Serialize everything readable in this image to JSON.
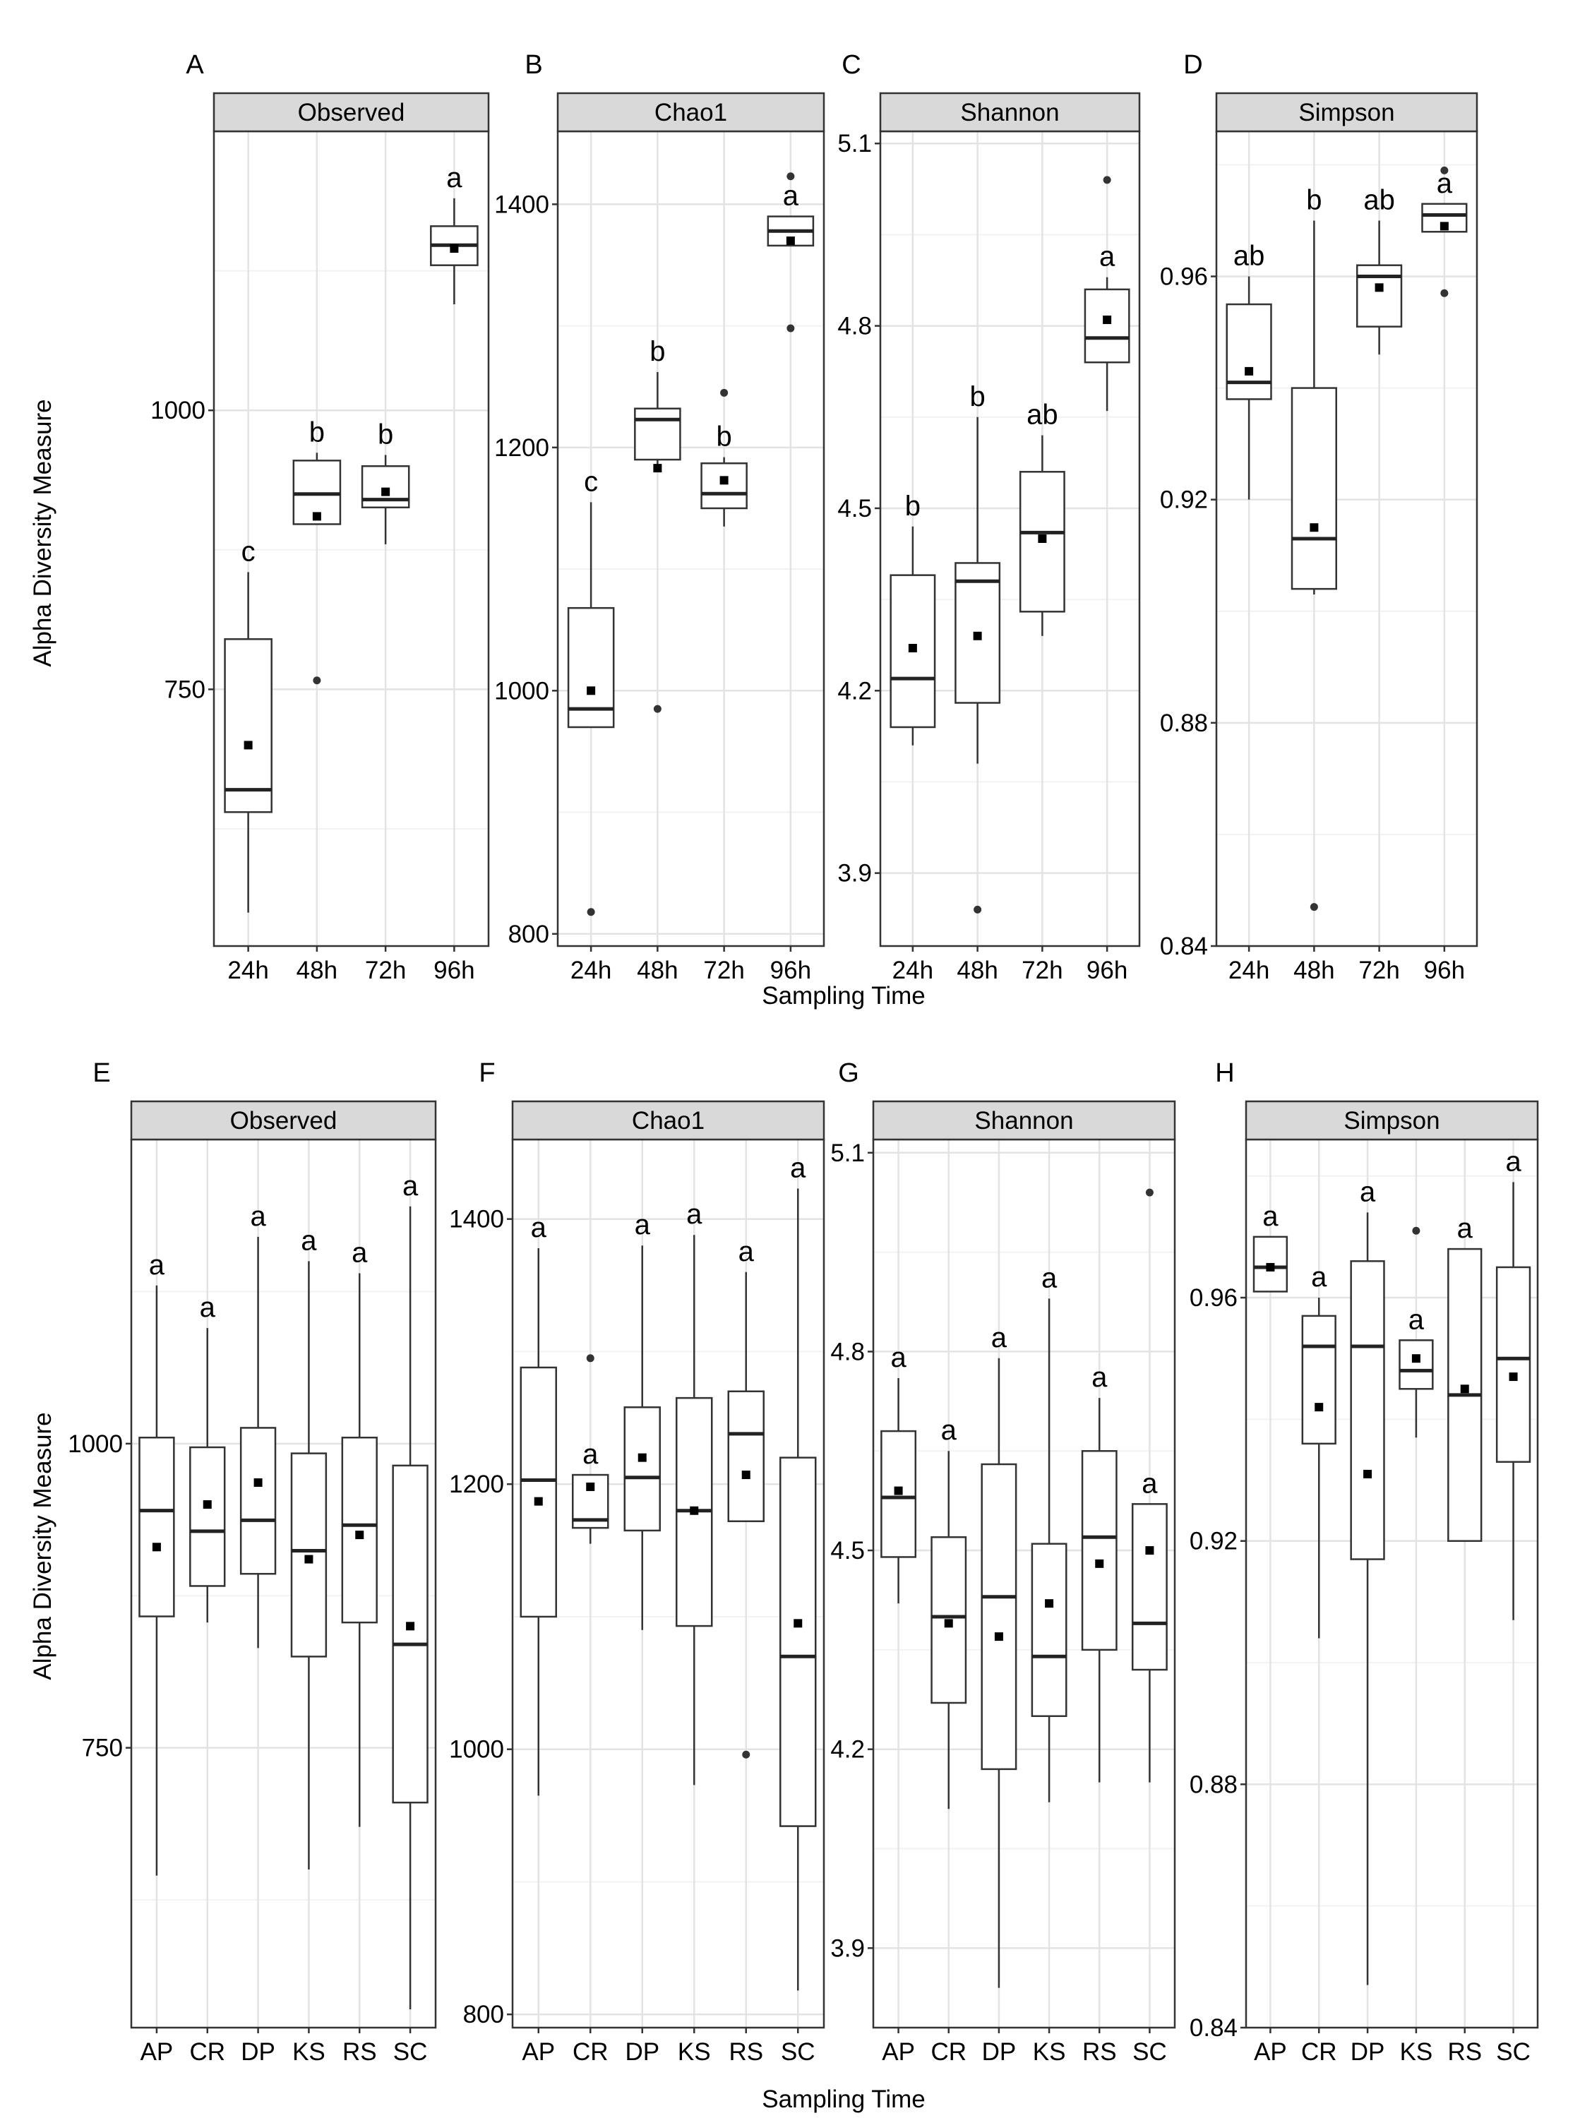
{
  "figure": {
    "ylabel": "Alpha Diversity Measure",
    "xlabel": "Sampling Time"
  },
  "chart_data": [
    {
      "panel": "A",
      "type": "box",
      "strip": "Observed",
      "ylim": [
        520,
        1250
      ],
      "yticks": [
        750,
        1000
      ],
      "grid": true,
      "categories": [
        "24h",
        "48h",
        "72h",
        "96h"
      ],
      "boxes": [
        {
          "q1": 640,
          "median": 660,
          "q3": 795,
          "lo": 550,
          "hi": 855,
          "mean": 700,
          "outliers": [],
          "letter": "c"
        },
        {
          "q1": 898,
          "median": 925,
          "q3": 955,
          "lo": 898,
          "hi": 962,
          "mean": 905,
          "outliers": [
            758
          ],
          "letter": "b"
        },
        {
          "q1": 913,
          "median": 920,
          "q3": 950,
          "lo": 880,
          "hi": 960,
          "mean": 927,
          "outliers": [],
          "letter": "b"
        },
        {
          "q1": 1130,
          "median": 1148,
          "q3": 1165,
          "lo": 1095,
          "hi": 1190,
          "mean": 1145,
          "outliers": [],
          "letter": "a"
        }
      ]
    },
    {
      "panel": "B",
      "type": "box",
      "strip": "Chao1",
      "ylim": [
        790,
        1460
      ],
      "yticks": [
        800,
        1000,
        1200,
        1400
      ],
      "grid": true,
      "categories": [
        "24h",
        "48h",
        "72h",
        "96h"
      ],
      "boxes": [
        {
          "q1": 970,
          "median": 985,
          "q3": 1068,
          "lo": 970,
          "hi": 1155,
          "mean": 1000,
          "outliers": [
            818
          ],
          "letter": "c"
        },
        {
          "q1": 1190,
          "median": 1223,
          "q3": 1232,
          "lo": 1185,
          "hi": 1262,
          "mean": 1183,
          "outliers": [
            985
          ],
          "letter": "b"
        },
        {
          "q1": 1150,
          "median": 1162,
          "q3": 1187,
          "lo": 1135,
          "hi": 1192,
          "mean": 1173,
          "outliers": [
            1245
          ],
          "letter": "b"
        },
        {
          "q1": 1366,
          "median": 1378,
          "q3": 1390,
          "lo": 1366,
          "hi": 1390,
          "mean": 1370,
          "outliers": [
            1298,
            1423
          ],
          "letter": "a"
        }
      ]
    },
    {
      "panel": "C",
      "type": "box",
      "strip": "Shannon",
      "ylim": [
        3.78,
        5.12
      ],
      "yticks": [
        "3.9",
        "4.2",
        "4.5",
        "4.8",
        "5.1"
      ],
      "grid": true,
      "categories": [
        "24h",
        "48h",
        "72h",
        "96h"
      ],
      "boxes": [
        {
          "q1": 4.14,
          "median": 4.22,
          "q3": 4.39,
          "lo": 4.11,
          "hi": 4.47,
          "mean": 4.27,
          "outliers": [],
          "letter": "b"
        },
        {
          "q1": 4.18,
          "median": 4.38,
          "q3": 4.41,
          "lo": 4.08,
          "hi": 4.65,
          "mean": 4.29,
          "outliers": [
            3.84
          ],
          "letter": "b"
        },
        {
          "q1": 4.33,
          "median": 4.46,
          "q3": 4.56,
          "lo": 4.29,
          "hi": 4.62,
          "mean": 4.45,
          "outliers": [],
          "letter": "ab"
        },
        {
          "q1": 4.74,
          "median": 4.78,
          "q3": 4.86,
          "lo": 4.66,
          "hi": 4.88,
          "mean": 4.81,
          "outliers": [
            5.04
          ],
          "letter": "a"
        }
      ]
    },
    {
      "panel": "D",
      "type": "box",
      "strip": "Simpson",
      "ylim": [
        0.84,
        0.986
      ],
      "yticks": [
        "0.84",
        "0.88",
        "0.92",
        "0.96"
      ],
      "grid": true,
      "categories": [
        "24h",
        "48h",
        "72h",
        "96h"
      ],
      "boxes": [
        {
          "q1": 0.938,
          "median": 0.941,
          "q3": 0.955,
          "lo": 0.92,
          "hi": 0.96,
          "mean": 0.943,
          "outliers": [],
          "letter": "ab"
        },
        {
          "q1": 0.904,
          "median": 0.913,
          "q3": 0.94,
          "lo": 0.903,
          "hi": 0.97,
          "mean": 0.915,
          "outliers": [
            0.847
          ],
          "letter": "b"
        },
        {
          "q1": 0.951,
          "median": 0.96,
          "q3": 0.962,
          "lo": 0.946,
          "hi": 0.97,
          "mean": 0.958,
          "outliers": [],
          "letter": "ab"
        },
        {
          "q1": 0.968,
          "median": 0.971,
          "q3": 0.973,
          "lo": 0.968,
          "hi": 0.973,
          "mean": 0.969,
          "outliers": [
            0.957,
            0.979
          ],
          "letter": "a"
        }
      ]
    },
    {
      "panel": "E",
      "type": "box",
      "strip": "Observed",
      "ylim": [
        520,
        1250
      ],
      "yticks": [
        750,
        1000
      ],
      "grid": true,
      "categories": [
        "AP",
        "CR",
        "DP",
        "KS",
        "RS",
        "SC"
      ],
      "boxes": [
        {
          "q1": 858,
          "median": 945,
          "q3": 1005,
          "lo": 645,
          "hi": 1130,
          "mean": 915,
          "outliers": [],
          "letter": "a"
        },
        {
          "q1": 883,
          "median": 928,
          "q3": 997,
          "lo": 853,
          "hi": 1095,
          "mean": 950,
          "outliers": [],
          "letter": "a"
        },
        {
          "q1": 893,
          "median": 937,
          "q3": 1013,
          "lo": 832,
          "hi": 1170,
          "mean": 968,
          "outliers": [],
          "letter": "a"
        },
        {
          "q1": 825,
          "median": 912,
          "q3": 992,
          "lo": 650,
          "hi": 1150,
          "mean": 905,
          "outliers": [],
          "letter": "a"
        },
        {
          "q1": 853,
          "median": 933,
          "q3": 1005,
          "lo": 685,
          "hi": 1140,
          "mean": 925,
          "outliers": [],
          "letter": "a"
        },
        {
          "q1": 705,
          "median": 835,
          "q3": 982,
          "lo": 535,
          "hi": 1195,
          "mean": 850,
          "outliers": [],
          "letter": "a"
        }
      ]
    },
    {
      "panel": "F",
      "type": "box",
      "strip": "Chao1",
      "ylim": [
        790,
        1460
      ],
      "yticks": [
        800,
        1000,
        1200,
        1400
      ],
      "grid": true,
      "categories": [
        "AP",
        "CR",
        "DP",
        "KS",
        "RS",
        "SC"
      ],
      "boxes": [
        {
          "q1": 1100,
          "median": 1203,
          "q3": 1288,
          "lo": 965,
          "hi": 1378,
          "mean": 1187,
          "outliers": [],
          "letter": "a"
        },
        {
          "q1": 1167,
          "median": 1173,
          "q3": 1207,
          "lo": 1155,
          "hi": 1207,
          "mean": 1198,
          "outliers": [
            1295
          ],
          "letter": "a"
        },
        {
          "q1": 1165,
          "median": 1205,
          "q3": 1258,
          "lo": 1090,
          "hi": 1380,
          "mean": 1220,
          "outliers": [],
          "letter": "a"
        },
        {
          "q1": 1093,
          "median": 1180,
          "q3": 1265,
          "lo": 973,
          "hi": 1388,
          "mean": 1180,
          "outliers": [],
          "letter": "a"
        },
        {
          "q1": 1172,
          "median": 1238,
          "q3": 1270,
          "lo": 1172,
          "hi": 1360,
          "mean": 1207,
          "outliers": [
            996
          ],
          "letter": "a"
        },
        {
          "q1": 942,
          "median": 1070,
          "q3": 1220,
          "lo": 818,
          "hi": 1423,
          "mean": 1095,
          "outliers": [],
          "letter": "a"
        }
      ]
    },
    {
      "panel": "G",
      "type": "box",
      "strip": "Shannon",
      "ylim": [
        3.78,
        5.12
      ],
      "yticks": [
        "3.9",
        "4.2",
        "4.5",
        "4.8",
        "5.1"
      ],
      "grid": true,
      "categories": [
        "AP",
        "CR",
        "DP",
        "KS",
        "RS",
        "SC"
      ],
      "boxes": [
        {
          "q1": 4.49,
          "median": 4.58,
          "q3": 4.68,
          "lo": 4.42,
          "hi": 4.76,
          "mean": 4.59,
          "outliers": [],
          "letter": "a"
        },
        {
          "q1": 4.27,
          "median": 4.4,
          "q3": 4.52,
          "lo": 4.11,
          "hi": 4.65,
          "mean": 4.39,
          "outliers": [],
          "letter": "a"
        },
        {
          "q1": 4.17,
          "median": 4.43,
          "q3": 4.63,
          "lo": 3.84,
          "hi": 4.79,
          "mean": 4.37,
          "outliers": [],
          "letter": "a"
        },
        {
          "q1": 4.25,
          "median": 4.34,
          "q3": 4.51,
          "lo": 4.12,
          "hi": 4.88,
          "mean": 4.42,
          "outliers": [],
          "letter": "a"
        },
        {
          "q1": 4.35,
          "median": 4.52,
          "q3": 4.65,
          "lo": 4.15,
          "hi": 4.73,
          "mean": 4.48,
          "outliers": [],
          "letter": "a"
        },
        {
          "q1": 4.32,
          "median": 4.39,
          "q3": 4.57,
          "lo": 4.15,
          "hi": 4.57,
          "mean": 4.5,
          "outliers": [
            5.04
          ],
          "letter": "a"
        }
      ]
    },
    {
      "panel": "H",
      "type": "box",
      "strip": "Simpson",
      "ylim": [
        0.84,
        0.986
      ],
      "yticks": [
        "0.84",
        "0.88",
        "0.92",
        "0.96"
      ],
      "grid": true,
      "categories": [
        "AP",
        "CR",
        "DP",
        "KS",
        "RS",
        "SC"
      ],
      "boxes": [
        {
          "q1": 0.961,
          "median": 0.965,
          "q3": 0.97,
          "lo": 0.961,
          "hi": 0.97,
          "mean": 0.965,
          "outliers": [],
          "letter": "a"
        },
        {
          "q1": 0.936,
          "median": 0.952,
          "q3": 0.957,
          "lo": 0.904,
          "hi": 0.96,
          "mean": 0.942,
          "outliers": [],
          "letter": "a"
        },
        {
          "q1": 0.917,
          "median": 0.952,
          "q3": 0.966,
          "lo": 0.847,
          "hi": 0.974,
          "mean": 0.931,
          "outliers": [],
          "letter": "a"
        },
        {
          "q1": 0.945,
          "median": 0.948,
          "q3": 0.953,
          "lo": 0.937,
          "hi": 0.953,
          "mean": 0.95,
          "outliers": [
            0.971
          ],
          "letter": "a"
        },
        {
          "q1": 0.92,
          "median": 0.944,
          "q3": 0.968,
          "lo": 0.92,
          "hi": 0.968,
          "mean": 0.945,
          "outliers": [],
          "letter": "a"
        },
        {
          "q1": 0.933,
          "median": 0.95,
          "q3": 0.965,
          "lo": 0.907,
          "hi": 0.979,
          "mean": 0.947,
          "outliers": [],
          "letter": "a"
        }
      ]
    }
  ]
}
